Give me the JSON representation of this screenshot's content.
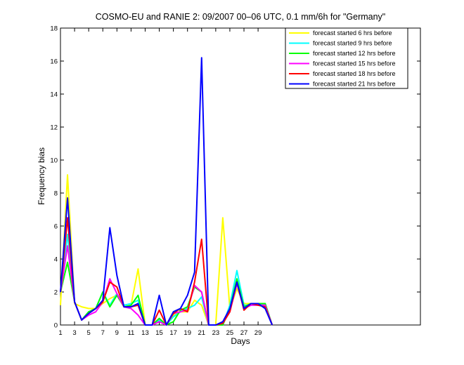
{
  "chart_data": {
    "type": "line",
    "title": "COSMO-EU and RANIE 2: 09/2007 00–06 UTC, 0.1 mm/6h for \"Germany\"",
    "xlabel": "Days",
    "ylabel": "Frequency bias",
    "xlim": [
      1,
      52
    ],
    "ylim": [
      0,
      18
    ],
    "xticks": [
      1,
      3,
      5,
      7,
      9,
      11,
      13,
      15,
      17,
      19,
      21,
      23,
      25,
      27,
      29
    ],
    "yticks": [
      0,
      2,
      4,
      6,
      8,
      10,
      12,
      14,
      16,
      18
    ],
    "grid": false,
    "legend_position": "top-right",
    "x": [
      1,
      2,
      3,
      4,
      5,
      6,
      7,
      8,
      9,
      10,
      11,
      12,
      13,
      14,
      15,
      16,
      17,
      18,
      19,
      20,
      21,
      22,
      23,
      24,
      25,
      26,
      27,
      28,
      29,
      30,
      31
    ],
    "series": [
      {
        "name": "forecast started 6 hrs before",
        "color": "#ffff00",
        "values": [
          1.2,
          9.1,
          1.3,
          1.1,
          1.0,
          1.0,
          1.3,
          1.6,
          1.8,
          1.1,
          1.2,
          3.4,
          0.0,
          0.0,
          0.3,
          0.0,
          0.6,
          0.8,
          0.8,
          1.5,
          1.2,
          0.0,
          0.0,
          6.5,
          1.0,
          2.2,
          1.3,
          1.3,
          1.3,
          1.3,
          0.0
        ]
      },
      {
        "name": "forecast started 9 hrs before",
        "color": "#00ffff",
        "values": [
          2.0,
          5.5,
          1.4,
          0.3,
          0.8,
          1.0,
          2.0,
          1.2,
          1.9,
          1.2,
          1.3,
          1.5,
          0.0,
          0.0,
          0.3,
          0.0,
          0.5,
          0.8,
          1.0,
          1.2,
          1.7,
          0.0,
          0.0,
          0.0,
          1.2,
          3.3,
          1.2,
          1.2,
          1.2,
          1.3,
          0.0
        ]
      },
      {
        "name": "forecast started 12 hrs before",
        "color": "#00ff00",
        "values": [
          2.0,
          3.8,
          1.4,
          0.3,
          0.8,
          1.0,
          2.0,
          1.1,
          1.8,
          1.1,
          1.2,
          1.8,
          0.0,
          0.0,
          0.4,
          0.0,
          0.2,
          0.9,
          1.1,
          2.3,
          2.0,
          0.0,
          0.0,
          0.0,
          1.0,
          2.8,
          1.1,
          1.3,
          1.3,
          1.3,
          0.0
        ]
      },
      {
        "name": "forecast started 15 hrs before",
        "color": "#ff00ff",
        "values": [
          2.0,
          4.8,
          1.4,
          0.3,
          0.6,
          0.8,
          1.4,
          2.8,
          1.9,
          1.1,
          1.0,
          0.6,
          0.0,
          0.0,
          0.2,
          0.0,
          0.7,
          0.8,
          0.9,
          2.4,
          2.0,
          0.0,
          0.0,
          0.1,
          0.8,
          2.5,
          1.0,
          1.2,
          1.2,
          1.2,
          0.0
        ]
      },
      {
        "name": "forecast started 18 hrs before",
        "color": "#ff0000",
        "values": [
          2.0,
          6.5,
          1.4,
          0.3,
          0.7,
          1.0,
          1.4,
          2.6,
          2.3,
          1.1,
          1.1,
          1.2,
          0.0,
          0.0,
          0.9,
          0.0,
          0.7,
          1.0,
          0.8,
          2.6,
          5.2,
          0.0,
          0.0,
          0.1,
          0.8,
          2.6,
          0.9,
          1.3,
          1.2,
          1.1,
          0.0
        ]
      },
      {
        "name": "forecast started 21 hrs before",
        "color": "#0000ff",
        "values": [
          2.0,
          7.7,
          1.4,
          0.3,
          0.7,
          1.0,
          1.5,
          5.9,
          3.0,
          1.1,
          1.1,
          1.3,
          0.0,
          0.0,
          1.8,
          0.0,
          0.8,
          1.0,
          1.8,
          3.2,
          16.2,
          0.0,
          0.0,
          0.2,
          1.0,
          2.6,
          1.0,
          1.3,
          1.3,
          1.0,
          0.0
        ]
      }
    ]
  }
}
